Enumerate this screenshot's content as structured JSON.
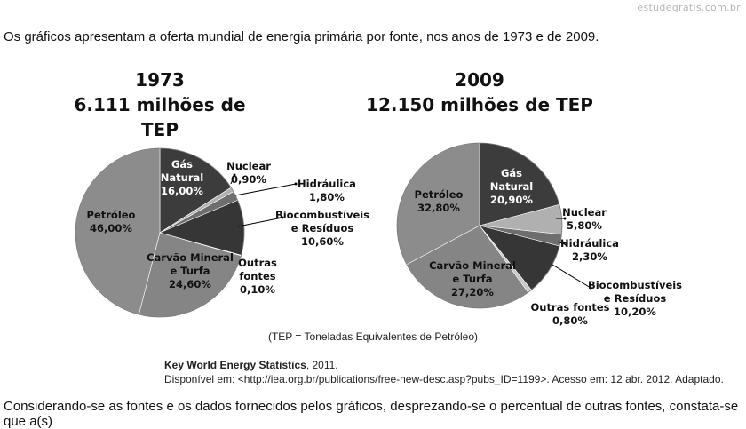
{
  "watermark": "estudegratis.com.br",
  "intro_text": "Os gráficos apresentam a oferta mundial de energia primária por fonte, nos anos de 1973 e de 2009.",
  "note": "(TEP = Toneladas Equivalentes de Petróleo)",
  "source": {
    "title": "Key World Energy Statistics",
    "year": ", 2011.",
    "line2": "Disponível em: <http://iea.org.br/publications/free-new-desc.asp?pubs_ID=1199>.  Acesso em: 12 abr. 2012. Adaptado."
  },
  "question_text": "Considerando-se as fontes e os dados fornecidos pelos gráficos, desprezando-se o percentual de outras fontes, constata-se que a(s)",
  "colors": {
    "gas": "#3c3c3c",
    "nuclear": "#b0b0b0",
    "hidraulica": "#6e6e6e",
    "bio": "#363636",
    "outras": "#c8c8c8",
    "carvao": "#858585",
    "petroleo": "#8c8c8c",
    "edge": "#ffffff"
  },
  "chart_data": [
    {
      "type": "pie",
      "title_line1": "1973",
      "title_line2": "6.111 milhões de TEP",
      "slices": [
        {
          "key": "gas",
          "label": [
            "Gás",
            "Natural"
          ],
          "value_label": "16,00%",
          "value": 16.0
        },
        {
          "key": "nuclear",
          "label": [
            "Nuclear"
          ],
          "value_label": "0,90%",
          "value": 0.9
        },
        {
          "key": "hidraulica",
          "label": [
            "Hidráulica"
          ],
          "value_label": "1,80%",
          "value": 1.8
        },
        {
          "key": "bio",
          "label": [
            "Biocombustíveis",
            "e Resíduos"
          ],
          "value_label": "10,60%",
          "value": 10.6
        },
        {
          "key": "outras",
          "label": [
            "Outras",
            "fontes"
          ],
          "value_label": "0,10%",
          "value": 0.1
        },
        {
          "key": "carvao",
          "label": [
            "Carvão Mineral",
            "e Turfa"
          ],
          "value_label": "24,60%",
          "value": 24.6
        },
        {
          "key": "petroleo",
          "label": [
            "Petróleo"
          ],
          "value_label": "46,00%",
          "value": 46.0
        }
      ]
    },
    {
      "type": "pie",
      "title_line1": "2009",
      "title_line2": "12.150 milhões de TEP",
      "slices": [
        {
          "key": "gas",
          "label": [
            "Gás",
            "Natural"
          ],
          "value_label": "20,90%",
          "value": 20.9
        },
        {
          "key": "nuclear",
          "label": [
            "Nuclear"
          ],
          "value_label": "5,80%",
          "value": 5.8
        },
        {
          "key": "hidraulica",
          "label": [
            "Hidráulica"
          ],
          "value_label": "2,30%",
          "value": 2.3
        },
        {
          "key": "bio",
          "label": [
            "Biocombustíveis",
            "e Resíduos"
          ],
          "value_label": "10,20%",
          "value": 10.2
        },
        {
          "key": "outras",
          "label": [
            "Outras fontes"
          ],
          "value_label": "0,80%",
          "value": 0.8
        },
        {
          "key": "carvao",
          "label": [
            "Carvão Mineral",
            "e Turfa"
          ],
          "value_label": "27,20%",
          "value": 27.2
        },
        {
          "key": "petroleo",
          "label": [
            "Petróleo"
          ],
          "value_label": "32,80%",
          "value": 32.8
        }
      ]
    }
  ]
}
